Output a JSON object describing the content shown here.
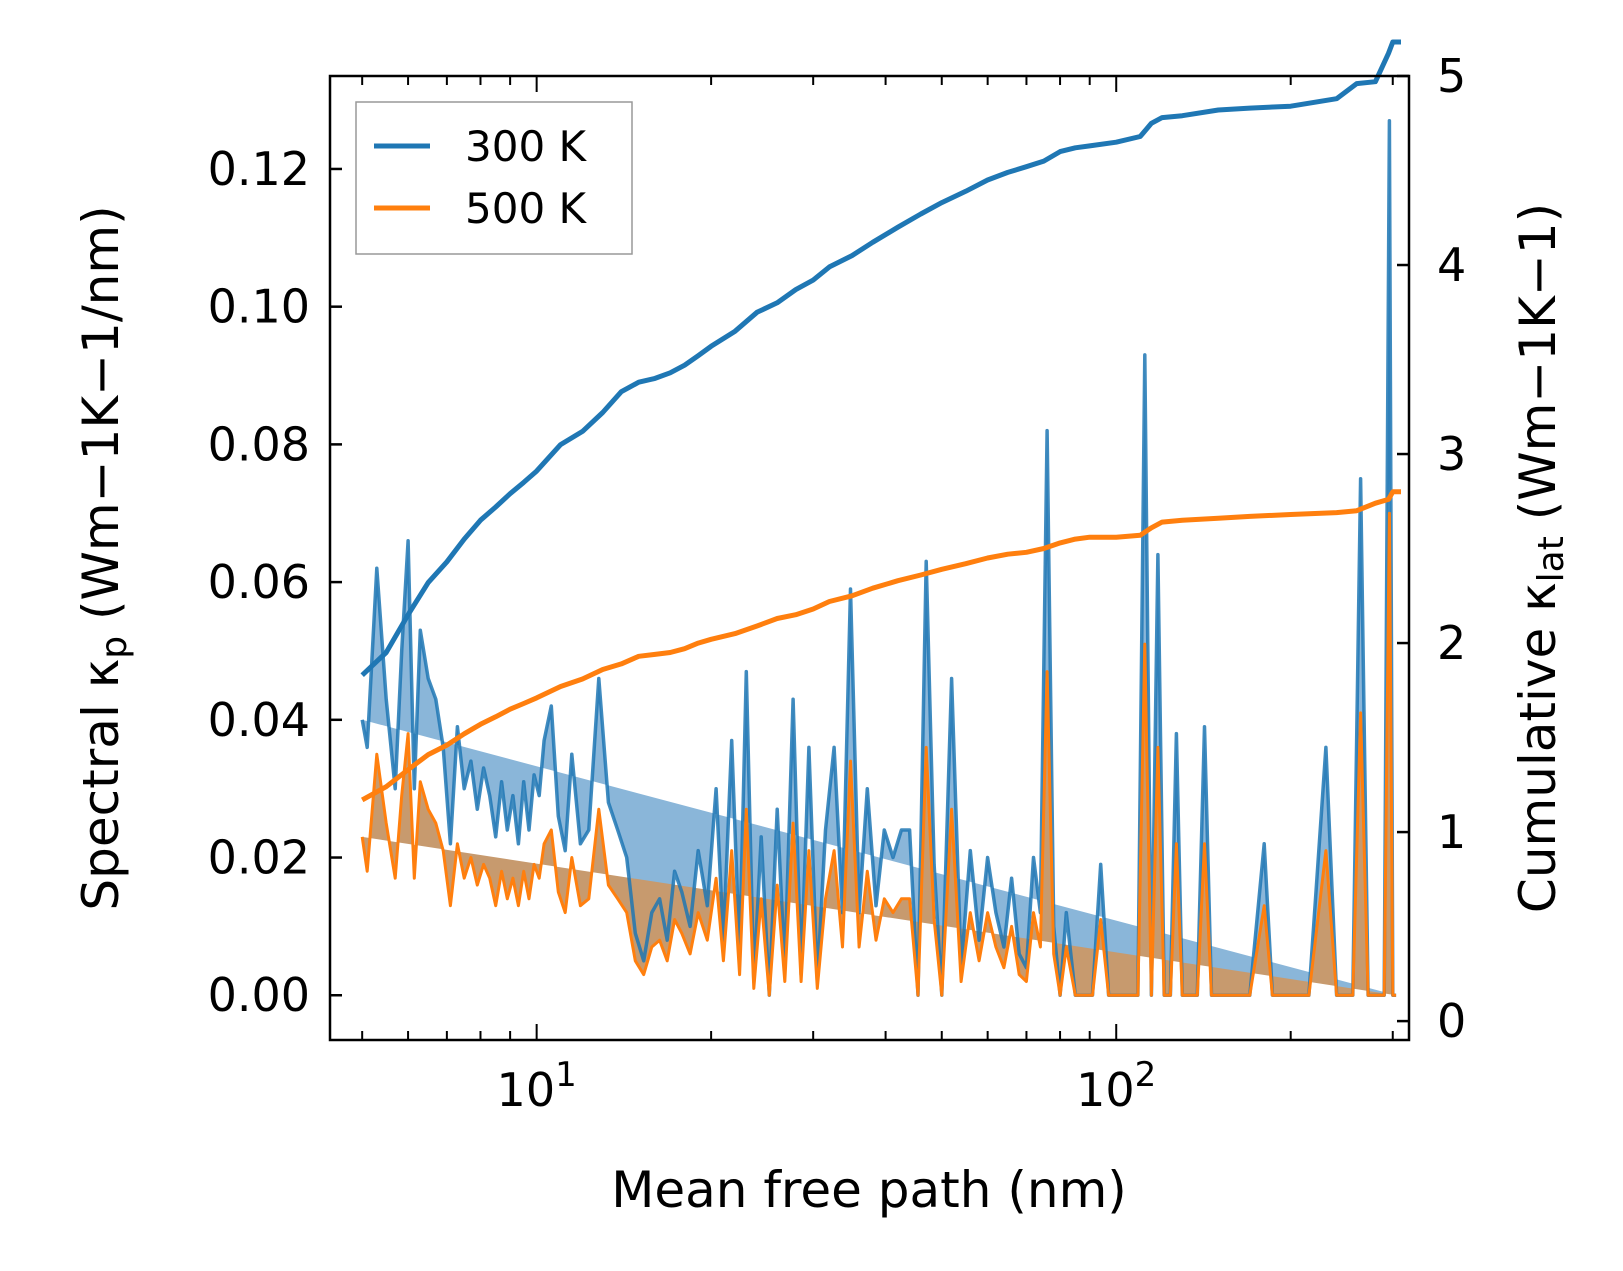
{
  "chart_data": {
    "type": "line",
    "xlabel": "Mean free path (nm)",
    "ylabel_left": {
      "text": "Spectral κ",
      "sub": "p",
      "units": " (Wm−1K−1/nm)"
    },
    "ylabel_right": {
      "text": "Cumulative κ",
      "sub": "lat",
      "units": " (Wm−1K−1)"
    },
    "x_scale": "log",
    "xlim": [
      4.4,
      320
    ],
    "ylim_left": [
      -0.0065,
      0.1335
    ],
    "ylim_right": [
      -0.1,
      5.0
    ],
    "x_ticks": [
      {
        "base": "10",
        "exp": "1",
        "value": 10
      },
      {
        "base": "10",
        "exp": "2",
        "value": 100
      }
    ],
    "y_ticks_left": [
      "0.00",
      "0.02",
      "0.04",
      "0.06",
      "0.08",
      "0.10",
      "0.12"
    ],
    "y_ticks_right": [
      "0",
      "1",
      "2",
      "3",
      "4",
      "5"
    ],
    "colors": {
      "s300": "#1f77b4",
      "s500": "#ff7f0e",
      "fill300": "#8ab6d9",
      "fill500": "#c79a6e"
    },
    "legend": [
      {
        "name": "300 K",
        "color": "#1f77b4"
      },
      {
        "name": "500 K",
        "color": "#ff7f0e"
      }
    ],
    "spectral_x": [
      5.0,
      5.1,
      5.3,
      5.5,
      5.7,
      5.85,
      6.0,
      6.15,
      6.3,
      6.5,
      6.7,
      6.9,
      7.1,
      7.3,
      7.5,
      7.7,
      7.9,
      8.1,
      8.3,
      8.5,
      8.7,
      8.9,
      9.1,
      9.3,
      9.5,
      9.7,
      9.9,
      10.1,
      10.3,
      10.6,
      10.9,
      11.2,
      11.5,
      11.9,
      12.3,
      12.8,
      13.3,
      13.8,
      14.3,
      14.8,
      15.3,
      15.8,
      16.3,
      16.8,
      17.3,
      17.8,
      18.4,
      19.0,
      19.7,
      20.4,
      21.0,
      21.7,
      22.4,
      23.0,
      23.7,
      24.4,
      25.2,
      26.0,
      26.8,
      27.7,
      28.6,
      29.5,
      30.5,
      31.5,
      32.6,
      33.7,
      34.8,
      36.0,
      37.2,
      38.5,
      39.8,
      41.2,
      42.6,
      44.0,
      45.5,
      47.0,
      48.5,
      50.0,
      52.0,
      54.0,
      56.0,
      58.0,
      60.0,
      62.0,
      64.0,
      66.0,
      68.0,
      70.0,
      72.0,
      74.0,
      76.0,
      78.0,
      80.0,
      82.0,
      85.0,
      88.0,
      91.0,
      94.0,
      97.0,
      100.0,
      103.0,
      106.0,
      109.0,
      112.0,
      115.0,
      118.0,
      121.0,
      124.0,
      127.0,
      130.0,
      134.0,
      138.0,
      142.0,
      146.0,
      150.0,
      155.0,
      160.0,
      170.0,
      180.0,
      186.0,
      192.0,
      200.0,
      215.0,
      230.0,
      240.0,
      248.0,
      256.0,
      264.0,
      272.0,
      280.0,
      290.0,
      296.0,
      300.0,
      304.0,
      308.0
    ],
    "series_300_spectral": [
      0.04,
      0.036,
      0.062,
      0.043,
      0.03,
      0.05,
      0.066,
      0.03,
      0.053,
      0.046,
      0.043,
      0.036,
      0.022,
      0.039,
      0.03,
      0.034,
      0.027,
      0.033,
      0.029,
      0.023,
      0.031,
      0.024,
      0.029,
      0.022,
      0.031,
      0.024,
      0.032,
      0.029,
      0.037,
      0.042,
      0.026,
      0.021,
      0.035,
      0.022,
      0.024,
      0.046,
      0.028,
      0.024,
      0.02,
      0.009,
      0.005,
      0.012,
      0.014,
      0.008,
      0.018,
      0.015,
      0.01,
      0.021,
      0.013,
      0.03,
      0.008,
      0.037,
      0.006,
      0.047,
      0.002,
      0.023,
      0.0,
      0.027,
      0.004,
      0.043,
      0.003,
      0.036,
      0.002,
      0.024,
      0.036,
      0.012,
      0.059,
      0.012,
      0.03,
      0.013,
      0.024,
      0.02,
      0.024,
      0.024,
      0.0,
      0.063,
      0.019,
      0.0,
      0.046,
      0.004,
      0.021,
      0.008,
      0.02,
      0.012,
      0.007,
      0.017,
      0.006,
      0.004,
      0.02,
      0.012,
      0.082,
      0.01,
      0.0,
      0.012,
      0.0,
      0.0,
      0.0,
      0.019,
      0.0,
      0.0,
      0.0,
      0.0,
      0.0,
      0.093,
      0.0,
      0.064,
      0.0,
      0.0,
      0.038,
      0.0,
      0.0,
      0.0,
      0.039,
      0.0,
      0.0,
      0.0,
      0.0,
      0.0,
      0.022,
      0.0,
      0.0,
      0.0,
      0.0,
      0.036,
      0.0,
      0.0,
      0.0,
      0.075,
      0.0,
      0.0,
      0.0,
      0.127,
      0.0,
      0.0
    ],
    "series_500_spectral": [
      0.023,
      0.018,
      0.035,
      0.025,
      0.017,
      0.029,
      0.038,
      0.017,
      0.031,
      0.027,
      0.025,
      0.021,
      0.013,
      0.022,
      0.017,
      0.02,
      0.016,
      0.019,
      0.017,
      0.013,
      0.018,
      0.014,
      0.017,
      0.013,
      0.018,
      0.014,
      0.019,
      0.017,
      0.022,
      0.024,
      0.015,
      0.012,
      0.02,
      0.013,
      0.014,
      0.027,
      0.016,
      0.014,
      0.012,
      0.005,
      0.003,
      0.007,
      0.008,
      0.005,
      0.011,
      0.009,
      0.006,
      0.012,
      0.008,
      0.017,
      0.005,
      0.021,
      0.003,
      0.027,
      0.001,
      0.014,
      0.0,
      0.016,
      0.002,
      0.025,
      0.002,
      0.021,
      0.001,
      0.014,
      0.021,
      0.007,
      0.034,
      0.007,
      0.018,
      0.008,
      0.014,
      0.012,
      0.014,
      0.014,
      0.0,
      0.036,
      0.011,
      0.0,
      0.027,
      0.002,
      0.012,
      0.005,
      0.012,
      0.007,
      0.004,
      0.01,
      0.003,
      0.002,
      0.012,
      0.007,
      0.047,
      0.006,
      0.0,
      0.007,
      0.0,
      0.0,
      0.0,
      0.011,
      0.0,
      0.0,
      0.0,
      0.0,
      0.0,
      0.051,
      0.0,
      0.036,
      0.0,
      0.0,
      0.022,
      0.0,
      0.0,
      0.0,
      0.022,
      0.0,
      0.0,
      0.0,
      0.0,
      0.0,
      0.013,
      0.0,
      0.0,
      0.0,
      0.0,
      0.021,
      0.0,
      0.0,
      0.0,
      0.041,
      0.0,
      0.0,
      0.0,
      0.07,
      0.0,
      0.0
    ],
    "cumulative_x": [
      5.0,
      5.5,
      6.0,
      6.5,
      7.0,
      7.5,
      8.0,
      8.5,
      9.0,
      9.5,
      10.0,
      11.0,
      12.0,
      13.0,
      14.0,
      15.0,
      16.0,
      17.0,
      18.0,
      19.0,
      20.0,
      22.0,
      24.0,
      26.0,
      28.0,
      30.0,
      32.0,
      35.0,
      38.0,
      42.0,
      46.0,
      50.0,
      55.0,
      60.0,
      65.0,
      70.0,
      75.0,
      80.0,
      85.0,
      90.0,
      100.0,
      110.0,
      115.0,
      120.0,
      130.0,
      150.0,
      170.0,
      200.0,
      240.0,
      260.0,
      280.0,
      295.0,
      300.0,
      310.0
    ],
    "series_300_cumulative": [
      1.83,
      1.95,
      2.15,
      2.32,
      2.43,
      2.55,
      2.65,
      2.72,
      2.79,
      2.85,
      2.91,
      3.05,
      3.12,
      3.22,
      3.33,
      3.38,
      3.4,
      3.43,
      3.47,
      3.52,
      3.57,
      3.65,
      3.75,
      3.8,
      3.87,
      3.92,
      3.99,
      4.05,
      4.12,
      4.2,
      4.27,
      4.33,
      4.39,
      4.45,
      4.49,
      4.52,
      4.55,
      4.6,
      4.62,
      4.63,
      4.65,
      4.68,
      4.75,
      4.78,
      4.79,
      4.82,
      4.83,
      4.84,
      4.88,
      4.96,
      4.97,
      5.12,
      5.18,
      5.18
    ],
    "series_500_cumulative": [
      1.17,
      1.24,
      1.33,
      1.41,
      1.46,
      1.52,
      1.57,
      1.61,
      1.65,
      1.68,
      1.71,
      1.77,
      1.81,
      1.86,
      1.89,
      1.93,
      1.94,
      1.95,
      1.97,
      2.0,
      2.02,
      2.05,
      2.09,
      2.13,
      2.15,
      2.18,
      2.22,
      2.25,
      2.29,
      2.33,
      2.36,
      2.39,
      2.42,
      2.45,
      2.47,
      2.48,
      2.5,
      2.53,
      2.55,
      2.56,
      2.56,
      2.57,
      2.61,
      2.64,
      2.65,
      2.66,
      2.67,
      2.68,
      2.69,
      2.7,
      2.74,
      2.76,
      2.8,
      2.8
    ]
  }
}
